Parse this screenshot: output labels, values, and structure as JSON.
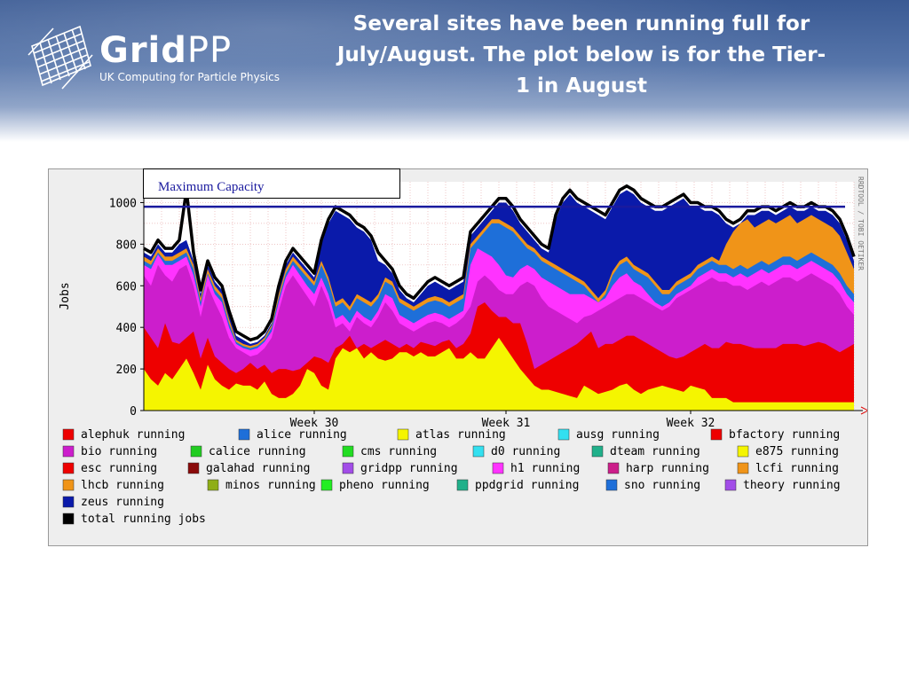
{
  "header": {
    "logo_main": "Grid",
    "logo_pp": "PP",
    "logo_sub": "UK Computing for Particle Physics",
    "title_lines": [
      "Several sites have been running full for",
      "July/August. The plot below is for the Tier-",
      "1 in August"
    ]
  },
  "annotation": {
    "label": "Maximum Capacity"
  },
  "colors": {
    "header_dark": "#3a5a94",
    "capacity_line": "#1a1a9e",
    "panel_bg": "#eeeeee"
  },
  "chart_data": {
    "type": "area",
    "ylabel": "Jobs",
    "xlabel": "",
    "ylim": [
      0,
      1100
    ],
    "yticks": [
      0,
      200,
      400,
      600,
      800,
      1000
    ],
    "xticks": [
      {
        "label": "Week 30",
        "pos": 0.24
      },
      {
        "label": "Week 31",
        "pos": 0.51
      },
      {
        "label": "Week 32",
        "pos": 0.77
      }
    ],
    "max_capacity": 980,
    "watermark": "RRDTOOL / TOBI OETIKER",
    "x": [
      0,
      1,
      2,
      3,
      4,
      5,
      6,
      7,
      8,
      9,
      10,
      11,
      12,
      13,
      14,
      15,
      16,
      17,
      18,
      19,
      20,
      21,
      22,
      23,
      24,
      25,
      26,
      27,
      28,
      29,
      30,
      31,
      32,
      33,
      34,
      35,
      36,
      37,
      38,
      39,
      40,
      41,
      42,
      43,
      44,
      45,
      46,
      47,
      48,
      49,
      50,
      51,
      52,
      53,
      54,
      55,
      56,
      57,
      58,
      59,
      60,
      61,
      62,
      63,
      64,
      65,
      66,
      67,
      68,
      69,
      70,
      71,
      72,
      73,
      74,
      75,
      76,
      77,
      78,
      79,
      80,
      81,
      82,
      83,
      84,
      85,
      86,
      87,
      88,
      89,
      90,
      91,
      92,
      93,
      94,
      95,
      96,
      97,
      98,
      99,
      100
    ],
    "series": [
      {
        "name": "atlas running",
        "color": "#f5f500",
        "values": [
          200,
          150,
          120,
          180,
          150,
          200,
          250,
          180,
          100,
          220,
          150,
          120,
          100,
          130,
          120,
          120,
          100,
          140,
          80,
          60,
          60,
          80,
          120,
          200,
          180,
          120,
          100,
          250,
          300,
          280,
          300,
          250,
          280,
          250,
          240,
          250,
          280,
          280,
          260,
          280,
          260,
          260,
          280,
          300,
          250,
          250,
          280,
          250,
          250,
          300,
          350,
          300,
          250,
          200,
          160,
          120,
          100,
          100,
          90,
          80,
          70,
          60,
          120,
          100,
          80,
          90,
          100,
          120,
          130,
          100,
          80,
          100,
          110,
          120,
          110,
          100,
          90,
          120,
          110,
          100,
          60,
          60,
          60,
          40,
          40,
          40,
          40,
          40,
          40,
          40,
          40,
          40,
          40,
          40,
          40,
          40,
          40,
          40,
          40,
          40,
          40
        ]
      },
      {
        "name": "esc running",
        "color": "#ee0000",
        "values": [
          400,
          350,
          300,
          420,
          330,
          320,
          350,
          380,
          250,
          350,
          260,
          230,
          200,
          180,
          200,
          230,
          200,
          220,
          180,
          200,
          200,
          190,
          200,
          230,
          260,
          250,
          230,
          300,
          320,
          360,
          300,
          320,
          300,
          320,
          340,
          320,
          300,
          320,
          300,
          330,
          320,
          310,
          330,
          340,
          300,
          320,
          370,
          500,
          520,
          480,
          450,
          450,
          420,
          420,
          320,
          200,
          220,
          240,
          260,
          280,
          300,
          320,
          350,
          380,
          300,
          320,
          320,
          340,
          360,
          360,
          340,
          320,
          300,
          280,
          260,
          250,
          260,
          280,
          300,
          320,
          300,
          300,
          330,
          320,
          320,
          310,
          300,
          300,
          300,
          300,
          320,
          320,
          320,
          310,
          320,
          330,
          320,
          300,
          280,
          300,
          320
        ]
      },
      {
        "name": "bio running",
        "color": "#cc1ecc",
        "values": [
          650,
          600,
          700,
          650,
          620,
          680,
          700,
          600,
          450,
          600,
          520,
          450,
          350,
          300,
          280,
          260,
          270,
          300,
          350,
          480,
          600,
          650,
          600,
          550,
          500,
          600,
          520,
          400,
          420,
          380,
          450,
          420,
          400,
          450,
          520,
          480,
          420,
          400,
          380,
          400,
          420,
          430,
          420,
          400,
          420,
          450,
          500,
          620,
          650,
          620,
          580,
          560,
          560,
          600,
          620,
          600,
          540,
          500,
          480,
          460,
          440,
          420,
          450,
          460,
          480,
          500,
          520,
          540,
          560,
          560,
          540,
          520,
          500,
          480,
          500,
          540,
          560,
          580,
          600,
          620,
          640,
          620,
          620,
          600,
          600,
          580,
          600,
          620,
          600,
          620,
          640,
          640,
          620,
          640,
          660,
          640,
          620,
          600,
          560,
          500,
          460
        ]
      },
      {
        "name": "h1 running",
        "color": "#ff33ff",
        "values": [
          700,
          680,
          750,
          700,
          700,
          720,
          740,
          650,
          500,
          650,
          560,
          520,
          400,
          320,
          300,
          290,
          300,
          330,
          380,
          520,
          640,
          700,
          650,
          600,
          560,
          640,
          560,
          440,
          460,
          420,
          480,
          450,
          430,
          480,
          560,
          540,
          460,
          440,
          420,
          440,
          460,
          470,
          460,
          440,
          460,
          480,
          700,
          780,
          760,
          740,
          700,
          650,
          640,
          680,
          700,
          680,
          640,
          620,
          600,
          580,
          560,
          560,
          560,
          540,
          520,
          540,
          600,
          640,
          660,
          620,
          600,
          560,
          520,
          500,
          520,
          560,
          580,
          600,
          640,
          660,
          680,
          660,
          660,
          640,
          660,
          640,
          660,
          680,
          660,
          680,
          700,
          700,
          680,
          700,
          720,
          700,
          680,
          660,
          620,
          560,
          520
        ]
      },
      {
        "name": "alice running",
        "color": "#1e6fd9",
        "values": [
          720,
          700,
          760,
          720,
          720,
          740,
          760,
          680,
          520,
          660,
          580,
          540,
          420,
          330,
          310,
          300,
          310,
          340,
          400,
          540,
          660,
          720,
          680,
          640,
          600,
          700,
          620,
          500,
          520,
          480,
          540,
          520,
          500,
          540,
          620,
          600,
          520,
          500,
          480,
          500,
          520,
          530,
          520,
          500,
          520,
          540,
          780,
          820,
          860,
          900,
          900,
          880,
          860,
          820,
          780,
          760,
          720,
          700,
          680,
          660,
          640,
          620,
          600,
          560,
          520,
          560,
          650,
          700,
          720,
          680,
          660,
          640,
          600,
          560,
          560,
          600,
          620,
          640,
          680,
          700,
          720,
          700,
          700,
          680,
          700,
          680,
          700,
          720,
          700,
          720,
          740,
          740,
          720,
          740,
          760,
          740,
          720,
          700,
          660,
          600,
          560
        ]
      },
      {
        "name": "lhcb running",
        "color": "#f09418",
        "values": [
          740,
          720,
          780,
          740,
          740,
          760,
          780,
          700,
          540,
          680,
          600,
          560,
          440,
          340,
          320,
          310,
          320,
          350,
          410,
          560,
          680,
          740,
          700,
          660,
          620,
          720,
          640,
          520,
          540,
          500,
          560,
          540,
          520,
          560,
          640,
          620,
          540,
          520,
          500,
          520,
          540,
          550,
          540,
          520,
          540,
          560,
          800,
          840,
          880,
          920,
          920,
          900,
          880,
          840,
          800,
          780,
          740,
          720,
          700,
          680,
          660,
          640,
          620,
          580,
          540,
          580,
          670,
          720,
          740,
          700,
          680,
          660,
          620,
          580,
          580,
          620,
          640,
          660,
          700,
          720,
          740,
          720,
          800,
          860,
          900,
          920,
          880,
          900,
          920,
          900,
          920,
          940,
          900,
          920,
          940,
          920,
          900,
          880,
          840,
          760,
          680
        ]
      },
      {
        "name": "zeus running",
        "color": "#0a1aaa",
        "values": [
          760,
          740,
          800,
          760,
          760,
          800,
          820,
          720,
          560,
          700,
          620,
          580,
          460,
          360,
          340,
          320,
          330,
          360,
          420,
          580,
          700,
          760,
          720,
          680,
          640,
          800,
          900,
          960,
          940,
          920,
          880,
          860,
          820,
          720,
          700,
          660,
          580,
          540,
          520,
          560,
          600,
          620,
          600,
          580,
          600,
          620,
          840,
          880,
          920,
          960,
          1000,
          1000,
          960,
          900,
          860,
          820,
          780,
          760,
          920,
          1000,
          1040,
          1000,
          980,
          960,
          940,
          920,
          980,
          1040,
          1060,
          1040,
          1000,
          980,
          960,
          960,
          980,
          1000,
          1020,
          980,
          980,
          960,
          960,
          940,
          900,
          880,
          900,
          940,
          940,
          960,
          960,
          940,
          960,
          980,
          960,
          960,
          980,
          960,
          960,
          940,
          900,
          820,
          720
        ]
      },
      {
        "name": "total running jobs",
        "color": "#000000",
        "values": [
          780,
          760,
          820,
          780,
          780,
          820,
          1060,
          760,
          580,
          720,
          640,
          600,
          480,
          380,
          360,
          340,
          350,
          380,
          440,
          600,
          720,
          780,
          740,
          700,
          660,
          820,
          920,
          980,
          960,
          940,
          900,
          880,
          840,
          760,
          720,
          680,
          600,
          560,
          540,
          580,
          620,
          640,
          620,
          600,
          620,
          640,
          860,
          900,
          940,
          980,
          1020,
          1020,
          980,
          920,
          880,
          840,
          800,
          780,
          940,
          1020,
          1060,
          1020,
          1000,
          980,
          960,
          940,
          1000,
          1060,
          1080,
          1060,
          1020,
          1000,
          980,
          980,
          1000,
          1020,
          1040,
          1000,
          1000,
          980,
          980,
          960,
          920,
          900,
          920,
          960,
          960,
          980,
          980,
          960,
          980,
          1000,
          980,
          980,
          1000,
          980,
          980,
          960,
          920,
          840,
          740
        ]
      }
    ],
    "legend": [
      {
        "label": "alephuk running",
        "color": "#ee0000"
      },
      {
        "label": "alice running",
        "color": "#1e6fd9"
      },
      {
        "label": "atlas running",
        "color": "#f5f500"
      },
      {
        "label": "ausg running",
        "color": "#33e0f0"
      },
      {
        "label": "bfactory running",
        "color": "#ee0000"
      },
      {
        "label": "bio running",
        "color": "#cc1ecc"
      },
      {
        "label": "calice running",
        "color": "#22cc22"
      },
      {
        "label": "cms running",
        "color": "#22dd22"
      },
      {
        "label": "d0 running",
        "color": "#33e0f0"
      },
      {
        "label": "dteam running",
        "color": "#20b08a"
      },
      {
        "label": "e875 running",
        "color": "#f5f500"
      },
      {
        "label": "esc running",
        "color": "#ee0000"
      },
      {
        "label": "galahad running",
        "color": "#8a0a0a"
      },
      {
        "label": "gridpp running",
        "color": "#a24de8"
      },
      {
        "label": "h1 running",
        "color": "#ff33ff"
      },
      {
        "label": "harp running",
        "color": "#cc1e8a"
      },
      {
        "label": "lcfi running",
        "color": "#f09418"
      },
      {
        "label": "lhcb running",
        "color": "#f09418"
      },
      {
        "label": "minos running",
        "color": "#8fae16"
      },
      {
        "label": "pheno running",
        "color": "#22ee22"
      },
      {
        "label": "ppdgrid running",
        "color": "#20b08a"
      },
      {
        "label": "sno running",
        "color": "#1e6fd9"
      },
      {
        "label": "theory running",
        "color": "#a24de8"
      },
      {
        "label": "zeus running",
        "color": "#0a1aaa"
      },
      {
        "label": "total running jobs",
        "color": "#000000"
      }
    ]
  }
}
